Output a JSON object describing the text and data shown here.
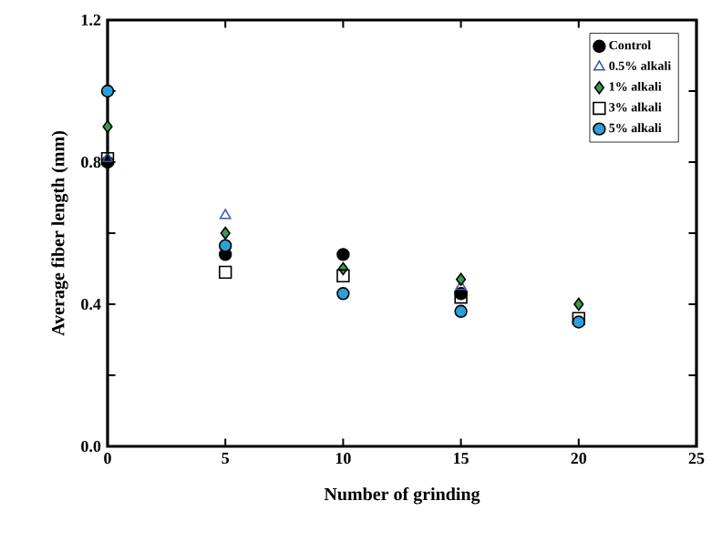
{
  "chart_data": {
    "type": "scatter",
    "xlabel": "Number of grinding",
    "ylabel": "Average fiber length (mm)",
    "x": [
      0,
      5,
      10,
      15,
      20
    ],
    "series": [
      {
        "name": "Control",
        "color": "#000000",
        "marker": "circle",
        "values": [
          0.8,
          0.54,
          0.54,
          0.43,
          null
        ]
      },
      {
        "name": "0.5% alkali",
        "color": "#3b56a6",
        "marker": "triangle",
        "values": [
          0.81,
          0.65,
          null,
          0.45,
          null
        ]
      },
      {
        "name": "1% alkali",
        "color": "#3a9a50",
        "marker": "diamond",
        "values": [
          0.9,
          0.6,
          0.5,
          0.47,
          0.4
        ]
      },
      {
        "name": "3% alkali",
        "color": "#000000",
        "marker": "square",
        "values": [
          0.81,
          0.49,
          0.48,
          0.42,
          0.36
        ]
      },
      {
        "name": "5% alkali",
        "color": "#2ea0d8",
        "marker": "circle",
        "values": [
          1.0,
          0.565,
          0.43,
          0.38,
          0.35
        ]
      }
    ],
    "xlim": [
      0,
      25
    ],
    "ylim": [
      0,
      1.2
    ],
    "xticks": [
      0,
      5,
      10,
      15,
      20,
      25
    ],
    "yticks": [
      {
        "value": 0,
        "label": "0.0"
      },
      {
        "value": 0.2,
        "label": null
      },
      {
        "value": 0.4,
        "label": "0.4"
      },
      {
        "value": 0.6,
        "label": null
      },
      {
        "value": 0.8,
        "label": "0.8"
      },
      {
        "value": 1.0,
        "label": null
      },
      {
        "value": 1.2,
        "label": "1.2"
      }
    ],
    "grid": false,
    "legend": "top right"
  }
}
